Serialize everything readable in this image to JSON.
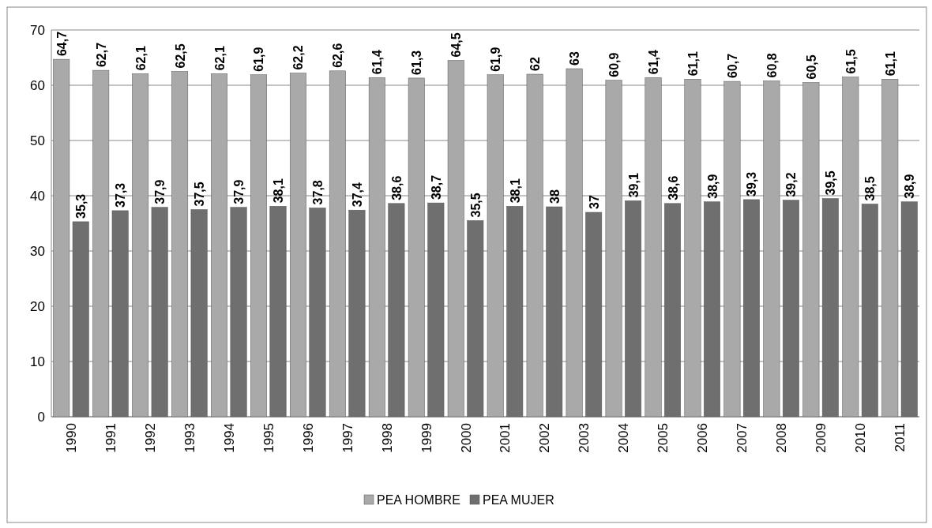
{
  "chart_data": {
    "type": "bar",
    "categories": [
      "1990",
      "1991",
      "1992",
      "1993",
      "1994",
      "1995",
      "1996",
      "1997",
      "1998",
      "1999",
      "2000",
      "2001",
      "2002",
      "2003",
      "2004",
      "2005",
      "2006",
      "2007",
      "2008",
      "2009",
      "2010",
      "2011"
    ],
    "series": [
      {
        "name": "PEA HOMBRE",
        "color": "#a9a9a9",
        "values": [
          64.7,
          62.7,
          62.1,
          62.5,
          62.1,
          61.9,
          62.2,
          62.6,
          61.4,
          61.3,
          64.5,
          61.9,
          62,
          63,
          60.9,
          61.4,
          61.1,
          60.7,
          60.8,
          60.5,
          61.5,
          61.1
        ],
        "value_labels": [
          "64,7",
          "62,7",
          "62,1",
          "62,5",
          "62,1",
          "61,9",
          "62,2",
          "62,6",
          "61,4",
          "61,3",
          "64,5",
          "61,9",
          "62",
          "63",
          "60,9",
          "61,4",
          "61,1",
          "60,7",
          "60,8",
          "60,5",
          "61,5",
          "61,1"
        ]
      },
      {
        "name": "PEA MUJER",
        "color": "#6f6f6f",
        "values": [
          35.3,
          37.3,
          37.9,
          37.5,
          37.9,
          38.1,
          37.8,
          37.4,
          38.6,
          38.7,
          35.5,
          38.1,
          38,
          37,
          39.1,
          38.6,
          38.9,
          39.3,
          39.2,
          39.5,
          38.5,
          38.9
        ],
        "value_labels": [
          "35,3",
          "37,3",
          "37,9",
          "37,5",
          "37,9",
          "38,1",
          "37,8",
          "37,4",
          "38,6",
          "38,7",
          "35,5",
          "38,1",
          "38",
          "37",
          "39,1",
          "38,6",
          "38,9",
          "39,3",
          "39,2",
          "39,5",
          "38,5",
          "38,9"
        ]
      }
    ],
    "ylim": [
      0,
      70
    ],
    "yticks": [
      0,
      10,
      20,
      30,
      40,
      50,
      60,
      70
    ],
    "grid": "y",
    "legend": "bottom"
  }
}
